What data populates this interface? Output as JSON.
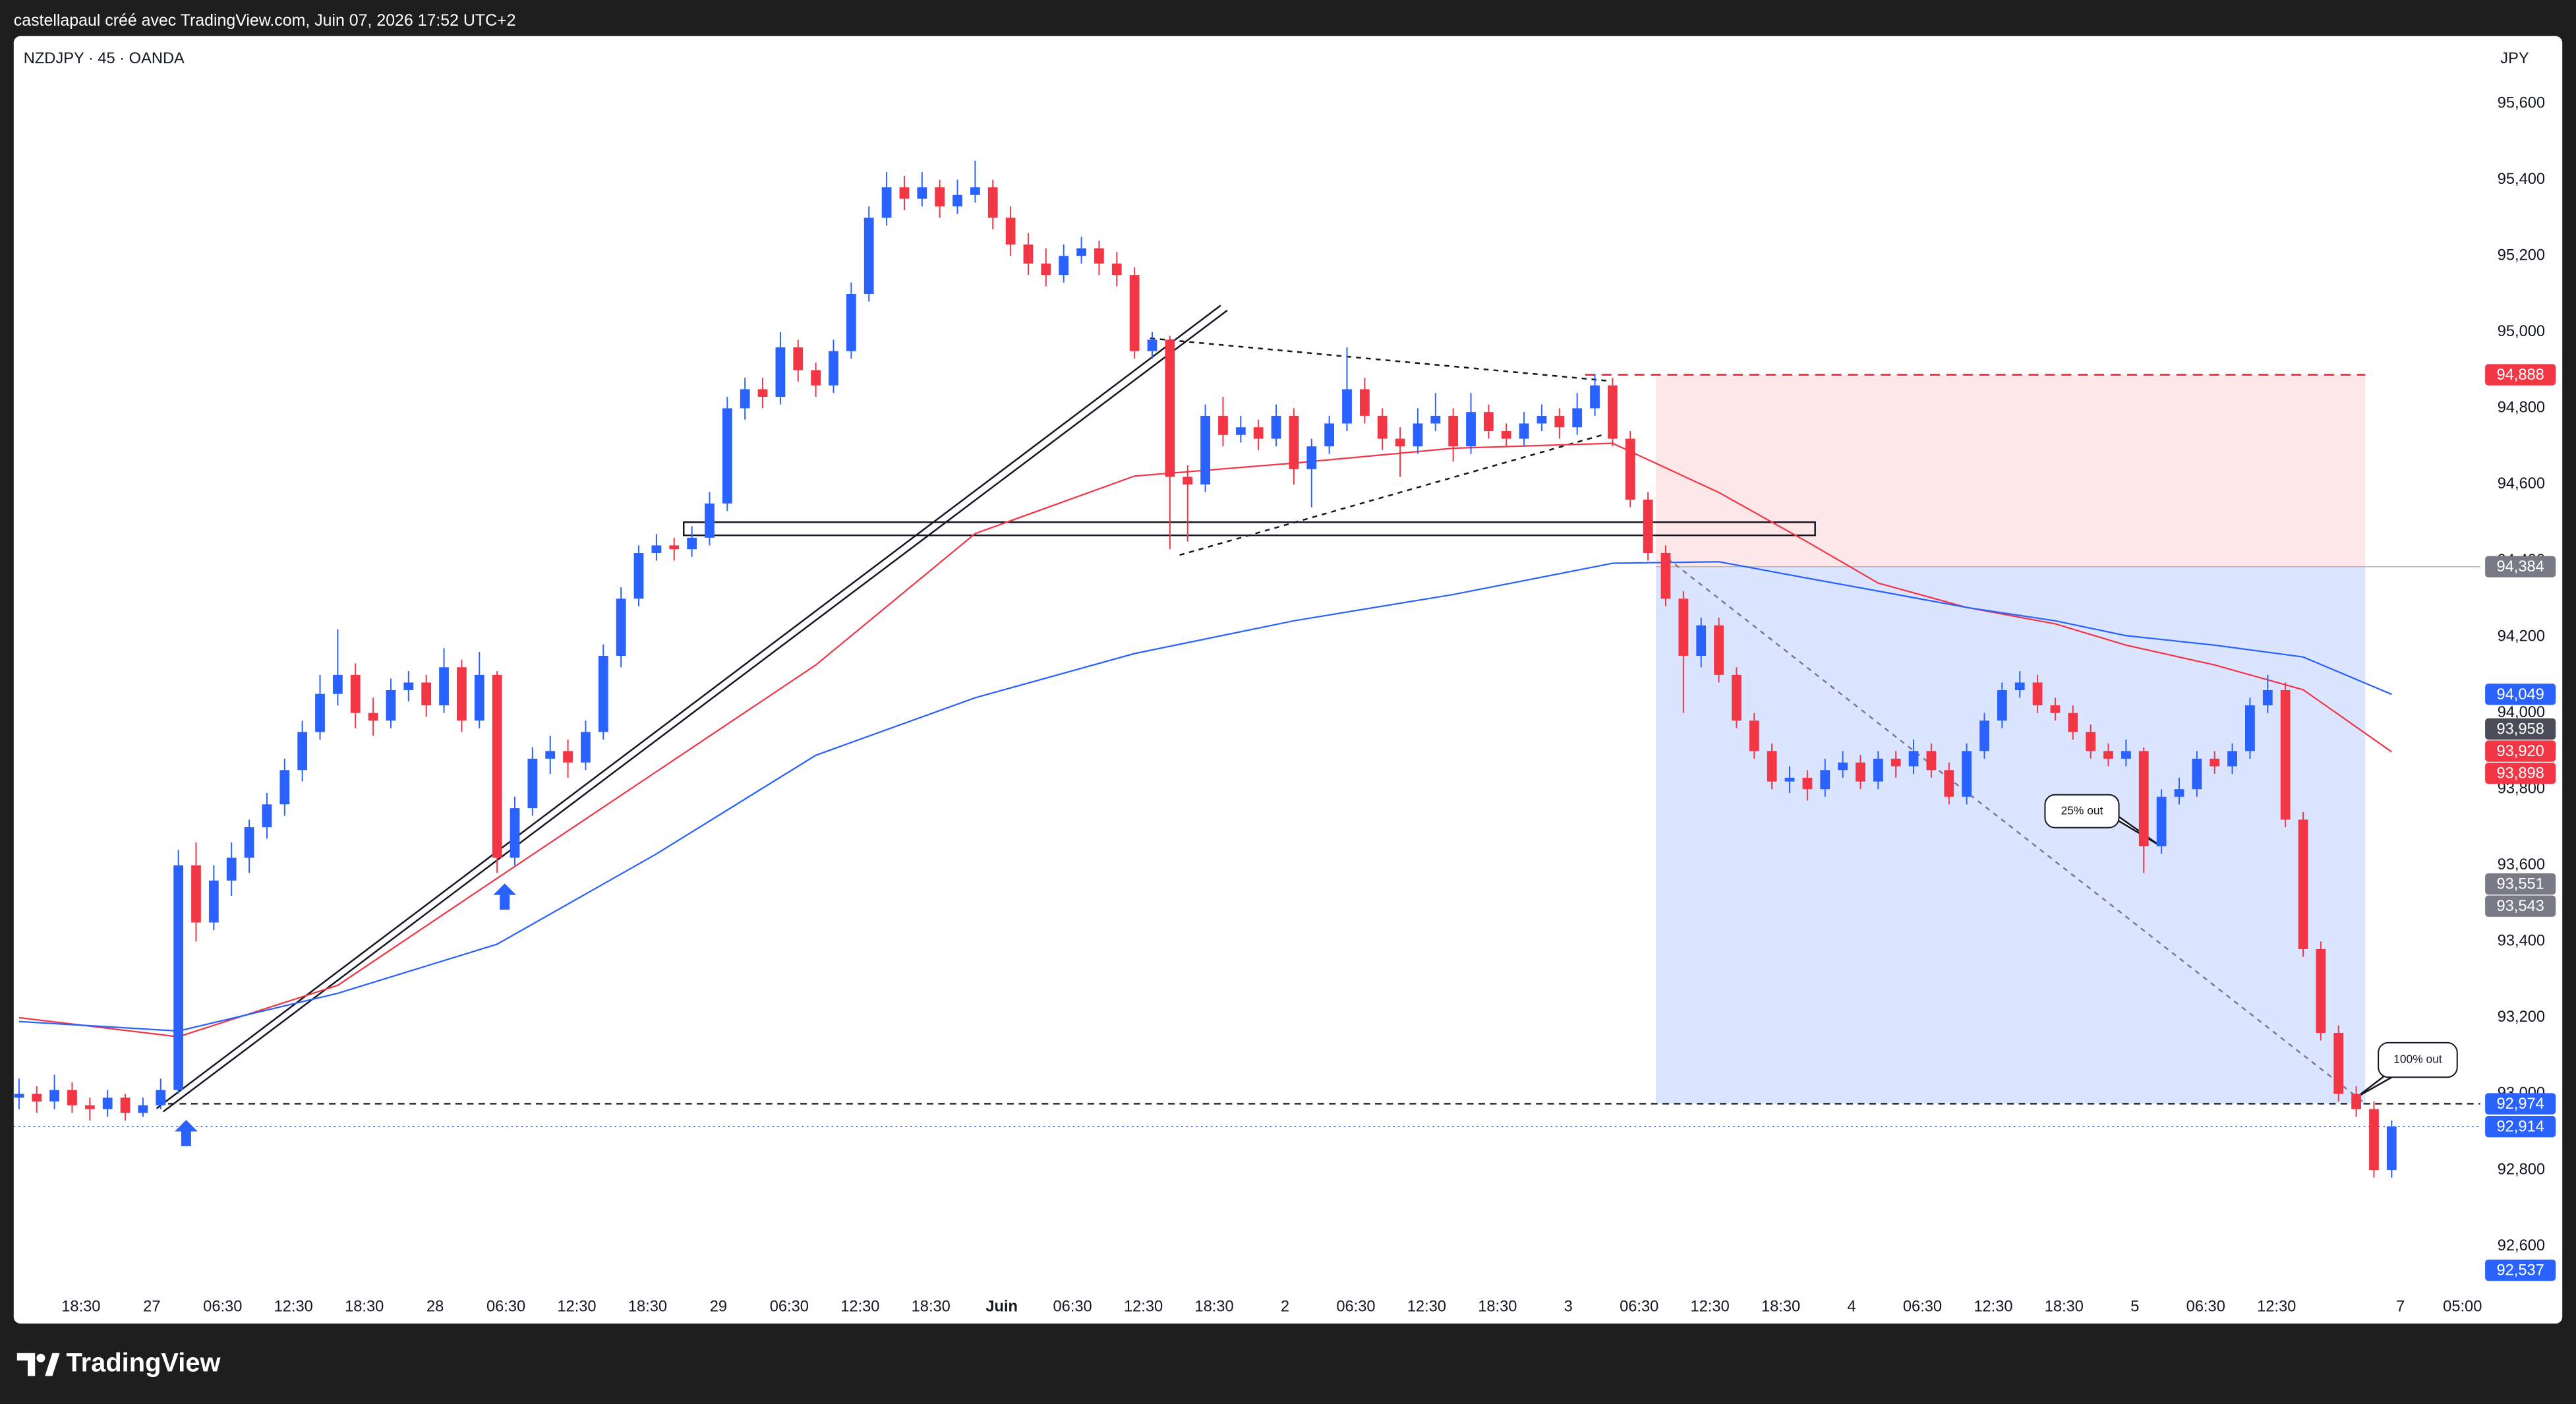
{
  "chart_data": {
    "type": "candlestick",
    "attribution": "castellapaul créé avec TradingView.com, Juin 07, 2026 17:52 UTC+2",
    "title": "NZDJPY · 45 · OANDA",
    "currency": "JPY",
    "brand": "TradingView",
    "up_color": "#2962ff",
    "down_color": "#f23645",
    "grid": false,
    "ylim": [
      92397,
      95777
    ],
    "xlim": [
      0.4,
      279
    ],
    "yticks": [
      {
        "value": 92600,
        "label": "92,600"
      },
      {
        "value": 92800,
        "label": "92,800"
      },
      {
        "value": 93000,
        "label": "93,000"
      },
      {
        "value": 93200,
        "label": "93,200"
      },
      {
        "value": 93400,
        "label": "93,400"
      },
      {
        "value": 93600,
        "label": "93,600"
      },
      {
        "value": 93800,
        "label": "93,800"
      },
      {
        "value": 94000,
        "label": "94,000"
      },
      {
        "value": 94200,
        "label": "94,200"
      },
      {
        "value": 94400,
        "label": "94,400"
      },
      {
        "value": 94600,
        "label": "94,600"
      },
      {
        "value": 94800,
        "label": "94,800"
      },
      {
        "value": 95000,
        "label": "95,000"
      },
      {
        "value": 95200,
        "label": "95,200"
      },
      {
        "value": 95400,
        "label": "95,400"
      },
      {
        "value": 95600,
        "label": "95,600"
      }
    ],
    "xticks": [
      {
        "value": 8,
        "label": "18:30"
      },
      {
        "value": 16,
        "label": "27"
      },
      {
        "value": 24,
        "label": "06:30"
      },
      {
        "value": 32,
        "label": "12:30"
      },
      {
        "value": 40,
        "label": "18:30"
      },
      {
        "value": 48,
        "label": "28"
      },
      {
        "value": 56,
        "label": "06:30"
      },
      {
        "value": 64,
        "label": "12:30"
      },
      {
        "value": 72,
        "label": "18:30"
      },
      {
        "value": 80,
        "label": "29"
      },
      {
        "value": 88,
        "label": "06:30"
      },
      {
        "value": 96,
        "label": "12:30"
      },
      {
        "value": 104,
        "label": "18:30"
      },
      {
        "value": 112,
        "label": "Juin"
      },
      {
        "value": 120,
        "label": "06:30"
      },
      {
        "value": 128,
        "label": "12:30"
      },
      {
        "value": 136,
        "label": "18:30"
      },
      {
        "value": 144,
        "label": "2"
      },
      {
        "value": 152,
        "label": "06:30"
      },
      {
        "value": 160,
        "label": "12:30"
      },
      {
        "value": 168,
        "label": "18:30"
      },
      {
        "value": 176,
        "label": "3"
      },
      {
        "value": 184,
        "label": "06:30"
      },
      {
        "value": 192,
        "label": "12:30"
      },
      {
        "value": 200,
        "label": "18:30"
      },
      {
        "value": 208,
        "label": "4"
      },
      {
        "value": 216,
        "label": "06:30"
      },
      {
        "value": 224,
        "label": "12:30"
      },
      {
        "value": 232,
        "label": "18:30"
      },
      {
        "value": 240,
        "label": "5"
      },
      {
        "value": 248,
        "label": "06:30"
      },
      {
        "value": 256,
        "label": "12:30"
      },
      {
        "value": 270,
        "label": "7"
      },
      {
        "value": 277,
        "label": "05:00"
      }
    ],
    "x": [
      1,
      3,
      5,
      7,
      9,
      11,
      13,
      15,
      17,
      19,
      21,
      23,
      25,
      27,
      29,
      31,
      33,
      35,
      37,
      39,
      41,
      43,
      45,
      47,
      49,
      51,
      53,
      55,
      57,
      59,
      61,
      63,
      65,
      67,
      69,
      71,
      73,
      75,
      77,
      79,
      81,
      83,
      85,
      87,
      89,
      91,
      93,
      95,
      97,
      99,
      101,
      103,
      105,
      107,
      109,
      111,
      113,
      115,
      117,
      119,
      121,
      123,
      125,
      127,
      129,
      131,
      133,
      135,
      137,
      139,
      141,
      143,
      145,
      147,
      149,
      151,
      153,
      155,
      157,
      159,
      161,
      163,
      165,
      167,
      169,
      171,
      173,
      175,
      177,
      179,
      181,
      183,
      185,
      187,
      189,
      191,
      193,
      195,
      197,
      199,
      201,
      203,
      205,
      207,
      209,
      211,
      213,
      215,
      217,
      219,
      221,
      223,
      225,
      227,
      229,
      231,
      233,
      235,
      237,
      239,
      241,
      243,
      245,
      247,
      249,
      251,
      253,
      255,
      257,
      259,
      261,
      263,
      265,
      267,
      269
    ],
    "ohlc": [
      [
        92990,
        93040,
        92960,
        93000
      ],
      [
        93000,
        93020,
        92950,
        92980
      ],
      [
        92980,
        93050,
        92960,
        93010
      ],
      [
        93010,
        93030,
        92950,
        92970
      ],
      [
        92970,
        92990,
        92930,
        92960
      ],
      [
        92960,
        93010,
        92940,
        92990
      ],
      [
        92990,
        93000,
        92930,
        92950
      ],
      [
        92950,
        92990,
        92940,
        92970
      ],
      [
        92970,
        93040,
        92960,
        93010
      ],
      [
        93010,
        93640,
        93000,
        93600
      ],
      [
        93600,
        93660,
        93400,
        93450
      ],
      [
        93450,
        93600,
        93430,
        93560
      ],
      [
        93560,
        93660,
        93520,
        93620
      ],
      [
        93620,
        93720,
        93580,
        93700
      ],
      [
        93700,
        93790,
        93670,
        93760
      ],
      [
        93760,
        93880,
        93730,
        93850
      ],
      [
        93850,
        93980,
        93820,
        93950
      ],
      [
        93950,
        94100,
        93930,
        94050
      ],
      [
        94050,
        94220,
        94020,
        94100
      ],
      [
        94100,
        94130,
        93960,
        94000
      ],
      [
        94000,
        94040,
        93940,
        93980
      ],
      [
        93980,
        94090,
        93960,
        94060
      ],
      [
        94060,
        94110,
        94030,
        94080
      ],
      [
        94080,
        94100,
        93990,
        94020
      ],
      [
        94020,
        94170,
        94000,
        94120
      ],
      [
        94120,
        94140,
        93950,
        93980
      ],
      [
        93980,
        94160,
        93960,
        94100
      ],
      [
        94100,
        94110,
        93580,
        93620
      ],
      [
        93620,
        93780,
        93600,
        93750
      ],
      [
        93750,
        93910,
        93730,
        93880
      ],
      [
        93880,
        93940,
        93840,
        93900
      ],
      [
        93900,
        93930,
        93830,
        93870
      ],
      [
        93870,
        93980,
        93850,
        93950
      ],
      [
        93950,
        94180,
        93930,
        94150
      ],
      [
        94150,
        94330,
        94120,
        94300
      ],
      [
        94300,
        94440,
        94280,
        94420
      ],
      [
        94420,
        94470,
        94400,
        94440
      ],
      [
        94440,
        94460,
        94400,
        94430
      ],
      [
        94430,
        94490,
        94410,
        94460
      ],
      [
        94460,
        94580,
        94440,
        94550
      ],
      [
        94550,
        94830,
        94530,
        94800
      ],
      [
        94800,
        94880,
        94770,
        94850
      ],
      [
        94850,
        94880,
        94800,
        94830
      ],
      [
        94830,
        95000,
        94810,
        94960
      ],
      [
        94960,
        94980,
        94870,
        94900
      ],
      [
        94900,
        94920,
        94830,
        94860
      ],
      [
        94860,
        94980,
        94840,
        94950
      ],
      [
        94950,
        95130,
        94930,
        95100
      ],
      [
        95100,
        95330,
        95080,
        95300
      ],
      [
        95300,
        95420,
        95280,
        95380
      ],
      [
        95380,
        95410,
        95320,
        95350
      ],
      [
        95350,
        95420,
        95330,
        95380
      ],
      [
        95380,
        95400,
        95300,
        95330
      ],
      [
        95330,
        95400,
        95310,
        95360
      ],
      [
        95360,
        95450,
        95340,
        95380
      ],
      [
        95380,
        95400,
        95270,
        95300
      ],
      [
        95300,
        95330,
        95200,
        95230
      ],
      [
        95230,
        95260,
        95150,
        95180
      ],
      [
        95180,
        95220,
        95120,
        95150
      ],
      [
        95150,
        95230,
        95130,
        95200
      ],
      [
        95200,
        95250,
        95180,
        95220
      ],
      [
        95220,
        95240,
        95150,
        95180
      ],
      [
        95180,
        95210,
        95120,
        95150
      ],
      [
        95150,
        95170,
        94930,
        94950
      ],
      [
        94950,
        95000,
        94930,
        94980
      ],
      [
        94980,
        94990,
        94430,
        94620
      ],
      [
        94620,
        94650,
        94450,
        94600
      ],
      [
        94600,
        94810,
        94580,
        94780
      ],
      [
        94780,
        94830,
        94700,
        94730
      ],
      [
        94730,
        94780,
        94710,
        94750
      ],
      [
        94750,
        94770,
        94690,
        94720
      ],
      [
        94720,
        94810,
        94700,
        94780
      ],
      [
        94780,
        94800,
        94600,
        94640
      ],
      [
        94640,
        94720,
        94540,
        94700
      ],
      [
        94700,
        94780,
        94680,
        94760
      ],
      [
        94760,
        94960,
        94740,
        94850
      ],
      [
        94850,
        94880,
        94760,
        94780
      ],
      [
        94780,
        94800,
        94690,
        94720
      ],
      [
        94720,
        94750,
        94620,
        94700
      ],
      [
        94700,
        94800,
        94680,
        94760
      ],
      [
        94760,
        94840,
        94740,
        94780
      ],
      [
        94780,
        94800,
        94660,
        94700
      ],
      [
        94700,
        94840,
        94680,
        94790
      ],
      [
        94790,
        94810,
        94720,
        94740
      ],
      [
        94740,
        94760,
        94700,
        94720
      ],
      [
        94720,
        94790,
        94700,
        94760
      ],
      [
        94760,
        94810,
        94740,
        94780
      ],
      [
        94780,
        94800,
        94720,
        94750
      ],
      [
        94750,
        94840,
        94730,
        94800
      ],
      [
        94800,
        94890,
        94780,
        94860
      ],
      [
        94860,
        94880,
        94700,
        94720
      ],
      [
        94720,
        94740,
        94540,
        94560
      ],
      [
        94560,
        94580,
        94400,
        94420
      ],
      [
        94420,
        94440,
        94280,
        94300
      ],
      [
        94300,
        94320,
        94000,
        94150
      ],
      [
        94150,
        94250,
        94120,
        94230
      ],
      [
        94230,
        94250,
        94080,
        94100
      ],
      [
        94100,
        94120,
        93960,
        93980
      ],
      [
        93980,
        94000,
        93880,
        93900
      ],
      [
        93900,
        93920,
        93800,
        93820
      ],
      [
        93820,
        93860,
        93790,
        93830
      ],
      [
        93830,
        93850,
        93770,
        93800
      ],
      [
        93800,
        93880,
        93780,
        93850
      ],
      [
        93850,
        93900,
        93830,
        93870
      ],
      [
        93870,
        93890,
        93800,
        93820
      ],
      [
        93820,
        93900,
        93800,
        93880
      ],
      [
        93880,
        93900,
        93830,
        93860
      ],
      [
        93860,
        93930,
        93840,
        93900
      ],
      [
        93900,
        93920,
        93830,
        93850
      ],
      [
        93850,
        93870,
        93760,
        93780
      ],
      [
        93780,
        93920,
        93760,
        93900
      ],
      [
        93900,
        94000,
        93880,
        93980
      ],
      [
        93980,
        94080,
        93960,
        94060
      ],
      [
        94060,
        94110,
        94040,
        94080
      ],
      [
        94080,
        94100,
        94000,
        94020
      ],
      [
        94020,
        94040,
        93980,
        94000
      ],
      [
        94000,
        94020,
        93930,
        93950
      ],
      [
        93950,
        93970,
        93880,
        93900
      ],
      [
        93900,
        93920,
        93860,
        93880
      ],
      [
        93880,
        93930,
        93860,
        93900
      ],
      [
        93900,
        93910,
        93580,
        93650
      ],
      [
        93650,
        93800,
        93630,
        93780
      ],
      [
        93780,
        93830,
        93760,
        93800
      ],
      [
        93800,
        93900,
        93780,
        93880
      ],
      [
        93880,
        93900,
        93840,
        93860
      ],
      [
        93860,
        93920,
        93840,
        93900
      ],
      [
        93900,
        94040,
        93880,
        94020
      ],
      [
        94020,
        94100,
        94000,
        94060
      ],
      [
        94060,
        94080,
        93700,
        93720
      ],
      [
        93720,
        93740,
        93360,
        93380
      ],
      [
        93380,
        93400,
        93140,
        93160
      ],
      [
        93160,
        93180,
        92980,
        93000
      ],
      [
        93000,
        93020,
        92940,
        92960
      ],
      [
        92960,
        92980,
        92780,
        92800
      ],
      [
        92800,
        92930,
        92780,
        92914
      ]
    ],
    "series": [
      {
        "color": "#f23645",
        "x": [
          1,
          19,
          37,
          55,
          73,
          91,
          109,
          127,
          145,
          163,
          181,
          193,
          203,
          211,
          221,
          231,
          239,
          249,
          259,
          269
        ],
        "values": [
          93200,
          93150,
          93285,
          93566,
          93846,
          94126,
          94471,
          94622,
          94656,
          94695,
          94708,
          94579,
          94449,
          94341,
          94277,
          94234,
          94178,
          94126,
          94061,
          93898
        ]
      },
      {
        "color": "#2962ff",
        "x": [
          1,
          19,
          37,
          55,
          73,
          91,
          109,
          127,
          145,
          163,
          181,
          193,
          203,
          211,
          221,
          231,
          239,
          249,
          259,
          269
        ],
        "values": [
          93190,
          93165,
          93264,
          93393,
          93630,
          93889,
          94040,
          94156,
          94242,
          94311,
          94393,
          94397,
          94354,
          94320,
          94277,
          94242,
          94203,
          94178,
          94147,
          94049
        ]
      }
    ],
    "price_labels": [
      {
        "value": 94888,
        "label": "94,888",
        "color": "#f23645"
      },
      {
        "value": 94384,
        "label": "94,384",
        "color": "#787b86"
      },
      {
        "value": 94049,
        "label": "94,049",
        "color": "#2962ff"
      },
      {
        "value": 93958,
        "label": "93,958",
        "color": "#4a4d57"
      },
      {
        "value": 93920,
        "label": "93,920",
        "color": "#f23645"
      },
      {
        "value": 93898,
        "label": "93,898",
        "color": "#f23645"
      },
      {
        "value": 93551,
        "label": "93,551",
        "color": "#787b86"
      },
      {
        "value": 93543,
        "label": "93,543",
        "color": "#787b86"
      },
      {
        "value": 92974,
        "label": "92,974",
        "color": "#2962ff"
      },
      {
        "value": 92914,
        "label": "92,914",
        "color": "#2962ff"
      },
      {
        "value": 92537,
        "label": "92,537",
        "color": "#2962ff"
      }
    ],
    "annotations": [
      "25% out",
      "100% out"
    ]
  }
}
